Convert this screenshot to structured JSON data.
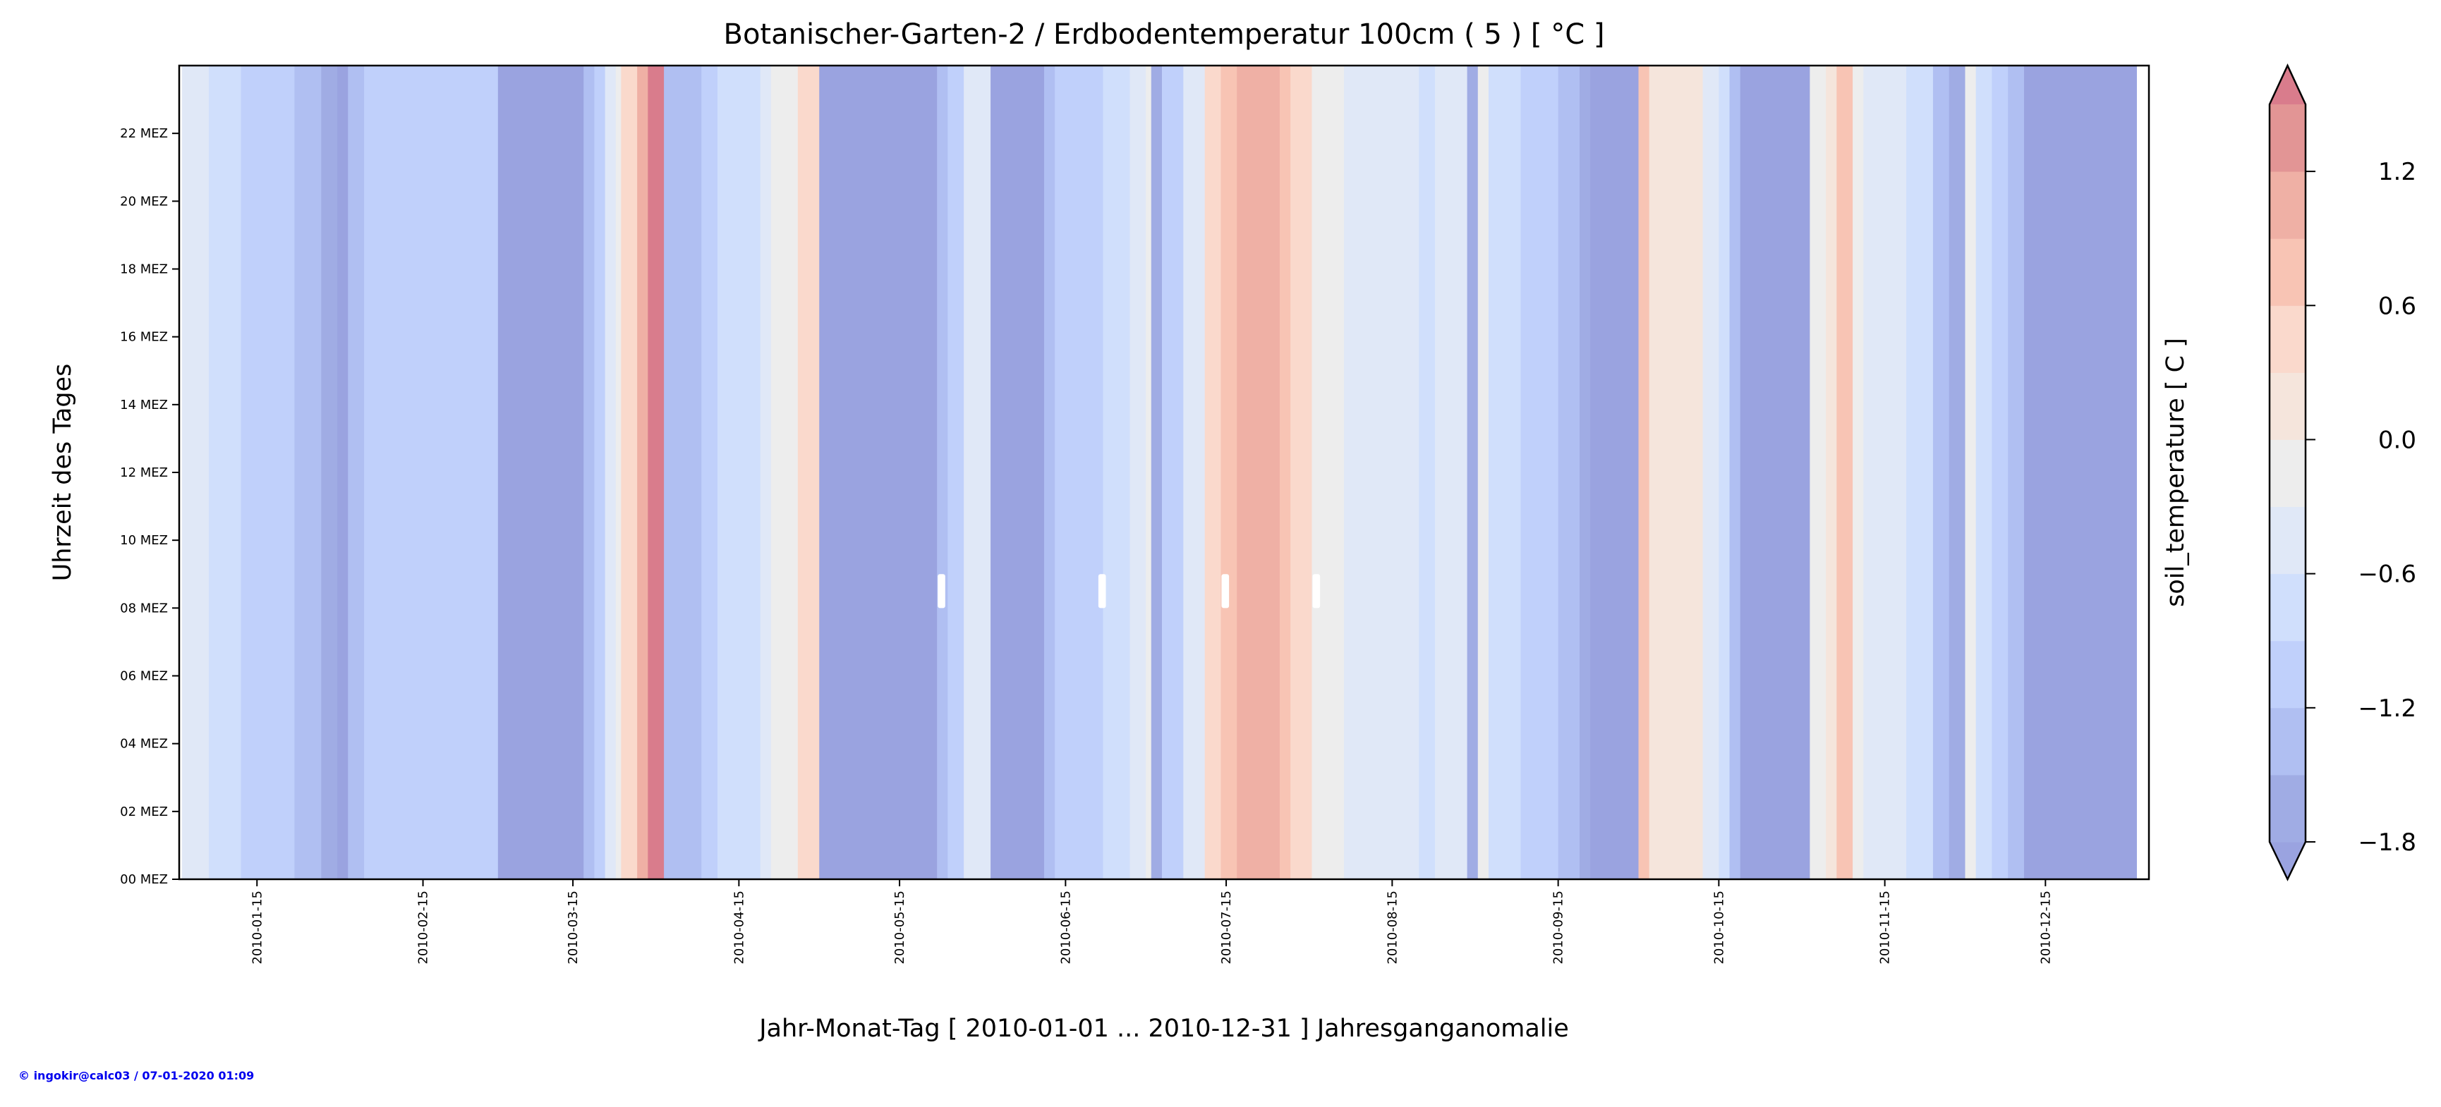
{
  "chart_data": {
    "type": "heatmap",
    "title": "Botanischer-Garten-2 / Erdbodentemperatur 100cm ( 5 ) [ °C ]",
    "xlabel": "Jahr-Monat-Tag [ 2010-01-01 ... 2010-12-31 ] Jahresganganomalie",
    "ylabel": "Uhrzeit des Tages",
    "colorbar_label": "soil_temperature [ C ]",
    "xlim": [
      "2010-01-01",
      "2010-12-31"
    ],
    "ylim": [
      0,
      24
    ],
    "x_ticks": [
      "2010-01-15",
      "2010-02-15",
      "2010-03-15",
      "2010-04-15",
      "2010-05-15",
      "2010-06-15",
      "2010-07-15",
      "2010-08-15",
      "2010-09-15",
      "2010-10-15",
      "2010-11-15",
      "2010-12-15"
    ],
    "y_ticks": [
      {
        "hour": 0,
        "label": "00 MEZ"
      },
      {
        "hour": 2,
        "label": "02 MEZ"
      },
      {
        "hour": 4,
        "label": "04 MEZ"
      },
      {
        "hour": 6,
        "label": "06 MEZ"
      },
      {
        "hour": 8,
        "label": "08 MEZ"
      },
      {
        "hour": 10,
        "label": "10 MEZ"
      },
      {
        "hour": 12,
        "label": "12 MEZ"
      },
      {
        "hour": 14,
        "label": "14 MEZ"
      },
      {
        "hour": 16,
        "label": "16 MEZ"
      },
      {
        "hour": 18,
        "label": "18 MEZ"
      },
      {
        "hour": 20,
        "label": "20 MEZ"
      },
      {
        "hour": 22,
        "label": "22 MEZ"
      }
    ],
    "colorbar": {
      "levels": [
        -1.8,
        -1.5,
        -1.2,
        -0.9,
        -0.6,
        -0.3,
        0.0,
        0.3,
        0.6,
        0.9,
        1.2,
        1.5
      ],
      "colors": [
        "#a0ace4",
        "#b0bff2",
        "#c0d0fb",
        "#d0dffc",
        "#e0e8f7",
        "#ededed",
        "#f5e5dc",
        "#fad9cc",
        "#f8c4b4",
        "#efb0a5",
        "#e29595"
      ],
      "under_color": "#9aa3e0",
      "over_color": "#d97c8c",
      "ticks": [
        -1.8,
        -1.2,
        -0.6,
        0.0,
        0.6,
        1.2
      ],
      "tick_labels": [
        "−1.8",
        "−1.2",
        "−0.6",
        "0.0",
        "0.6",
        "1.2"
      ],
      "extend": "both"
    },
    "segments": [
      {
        "start": "2010-01-01",
        "value": -0.45
      },
      {
        "start": "2010-01-06",
        "value": -0.75
      },
      {
        "start": "2010-01-12",
        "value": -1.05
      },
      {
        "start": "2010-01-22",
        "value": -1.35
      },
      {
        "start": "2010-01-27",
        "value": -1.65
      },
      {
        "start": "2010-01-30",
        "value": -1.9
      },
      {
        "start": "2010-02-01",
        "value": -1.35
      },
      {
        "start": "2010-02-04",
        "value": -1.05
      },
      {
        "start": "2010-03-01",
        "value": -1.9
      },
      {
        "start": "2010-03-17",
        "value": -1.35
      },
      {
        "start": "2010-03-19",
        "value": -1.05
      },
      {
        "start": "2010-03-21",
        "value": -0.45
      },
      {
        "start": "2010-03-23",
        "value": -0.15
      },
      {
        "start": "2010-03-24",
        "value": 0.45
      },
      {
        "start": "2010-03-27",
        "value": 1.05
      },
      {
        "start": "2010-03-29",
        "value": 1.6
      },
      {
        "start": "2010-04-01",
        "value": -1.35
      },
      {
        "start": "2010-04-08",
        "value": -1.05
      },
      {
        "start": "2010-04-11",
        "value": -0.75
      },
      {
        "start": "2010-04-19",
        "value": -0.45
      },
      {
        "start": "2010-04-21",
        "value": -0.15
      },
      {
        "start": "2010-04-26",
        "value": 0.45
      },
      {
        "start": "2010-04-30",
        "value": -1.9
      },
      {
        "start": "2010-05-22",
        "value": -1.35
      },
      {
        "start": "2010-05-24",
        "value": -1.05
      },
      {
        "start": "2010-05-27",
        "value": -0.45
      },
      {
        "start": "2010-06-01",
        "value": -1.9
      },
      {
        "start": "2010-06-11",
        "value": -1.35
      },
      {
        "start": "2010-06-13",
        "value": -1.05
      },
      {
        "start": "2010-06-22",
        "value": -0.75
      },
      {
        "start": "2010-06-27",
        "value": -0.45
      },
      {
        "start": "2010-06-30",
        "value": -0.15
      },
      {
        "start": "2010-07-01",
        "value": -1.65
      },
      {
        "start": "2010-07-03",
        "value": -1.05
      },
      {
        "start": "2010-07-07",
        "value": -0.45
      },
      {
        "start": "2010-07-11",
        "value": 0.45
      },
      {
        "start": "2010-07-14",
        "value": 0.75
      },
      {
        "start": "2010-07-17",
        "value": 1.05
      },
      {
        "start": "2010-07-25",
        "value": 0.75
      },
      {
        "start": "2010-07-27",
        "value": 0.45
      },
      {
        "start": "2010-07-31",
        "value": -0.15
      },
      {
        "start": "2010-08-06",
        "value": -0.45
      },
      {
        "start": "2010-08-20",
        "value": -0.75
      },
      {
        "start": "2010-08-23",
        "value": -0.45
      },
      {
        "start": "2010-08-29",
        "value": -1.65
      },
      {
        "start": "2010-08-31",
        "value": -0.15
      },
      {
        "start": "2010-09-02",
        "value": -0.75
      },
      {
        "start": "2010-09-08",
        "value": -1.05
      },
      {
        "start": "2010-09-15",
        "value": -1.35
      },
      {
        "start": "2010-09-19",
        "value": -1.65
      },
      {
        "start": "2010-09-21",
        "value": -1.9
      },
      {
        "start": "2010-09-30",
        "value": 0.75
      },
      {
        "start": "2010-10-02",
        "value": 0.15
      },
      {
        "start": "2010-10-12",
        "value": -0.45
      },
      {
        "start": "2010-10-15",
        "value": -0.75
      },
      {
        "start": "2010-10-17",
        "value": -1.35
      },
      {
        "start": "2010-10-19",
        "value": -1.9
      },
      {
        "start": "2010-11-01",
        "value": -0.15
      },
      {
        "start": "2010-11-04",
        "value": 0.15
      },
      {
        "start": "2010-11-06",
        "value": 0.75
      },
      {
        "start": "2010-11-09",
        "value": -0.15
      },
      {
        "start": "2010-11-11",
        "value": -0.45
      },
      {
        "start": "2010-11-19",
        "value": -0.75
      },
      {
        "start": "2010-11-24",
        "value": -1.35
      },
      {
        "start": "2010-11-27",
        "value": -1.65
      },
      {
        "start": "2010-11-30",
        "value": -0.15
      },
      {
        "start": "2010-12-02",
        "value": -0.75
      },
      {
        "start": "2010-12-05",
        "value": -1.05
      },
      {
        "start": "2010-12-08",
        "value": -1.35
      },
      {
        "start": "2010-12-11",
        "value": -1.9
      }
    ],
    "missing": [
      {
        "date": "2010-05-22",
        "hours": [
          8,
          9
        ]
      },
      {
        "date": "2010-06-21",
        "hours": [
          8,
          9
        ]
      },
      {
        "date": "2010-07-14",
        "hours": [
          8,
          9
        ]
      },
      {
        "date": "2010-07-31",
        "hours": [
          8,
          9
        ]
      }
    ],
    "grid": false
  },
  "footer": "© ingokir@calc03 / 07-01-2020 01:09"
}
